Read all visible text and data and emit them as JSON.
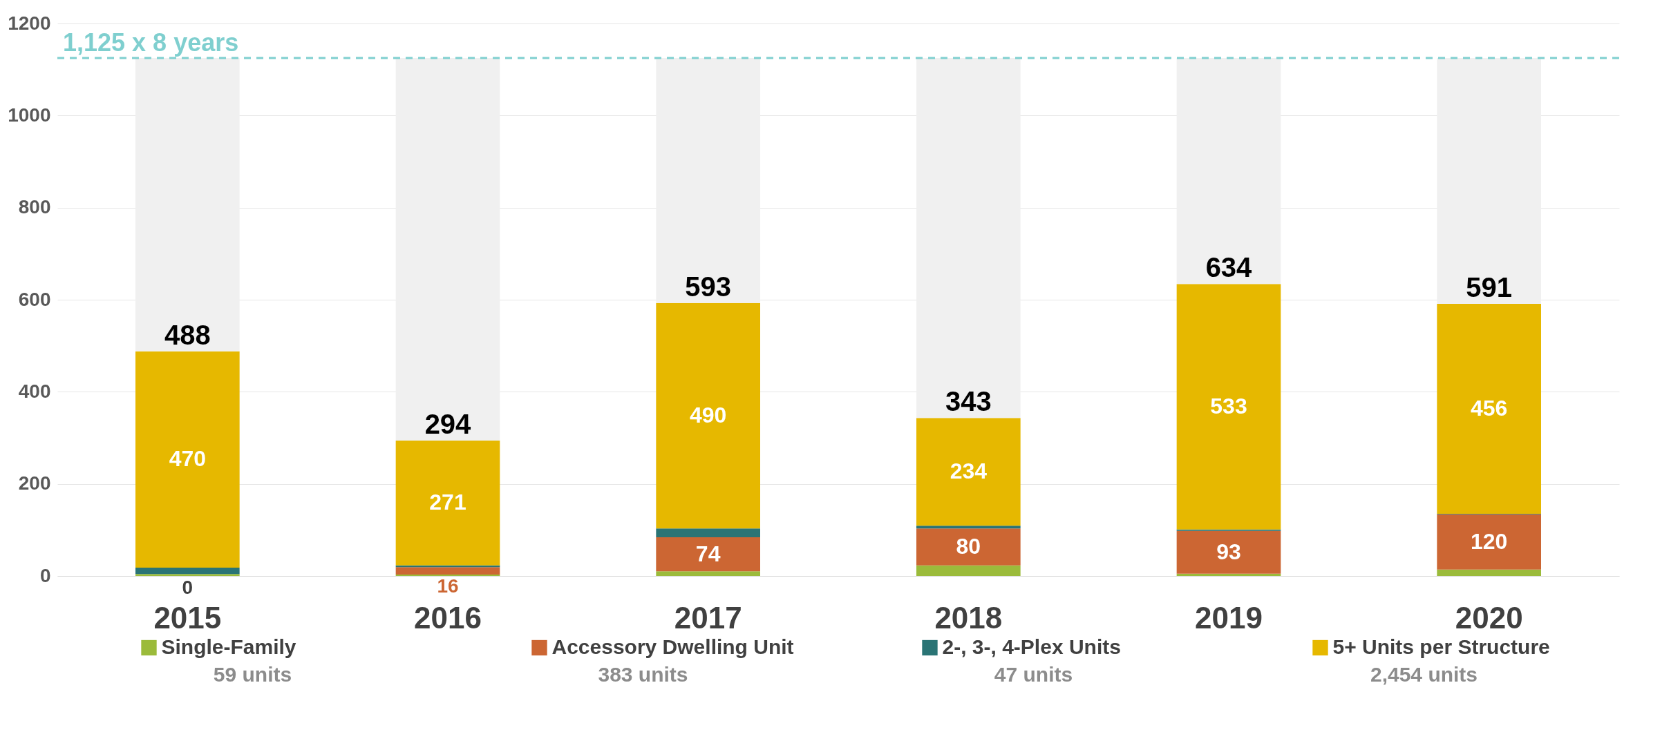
{
  "chart_data": {
    "type": "bar",
    "stacked": true,
    "categories": [
      "2015",
      "2016",
      "2017",
      "2018",
      "2019",
      "2020"
    ],
    "series": [
      {
        "name": "Single-Family",
        "color": "#9bbb3b",
        "values": [
          4,
          3,
          10,
          23,
          5,
          14
        ]
      },
      {
        "name": "Accessory Dwelling Unit",
        "color": "#cc6633",
        "values": [
          0,
          16,
          74,
          80,
          93,
          120
        ],
        "value_labels": [
          null,
          "16",
          "74",
          "80",
          "93",
          "120"
        ]
      },
      {
        "name": "2-, 3-, 4-Plex Units",
        "color": "#2a7475",
        "values": [
          14,
          4,
          19,
          6,
          3,
          1
        ]
      },
      {
        "name": "5+ Units per Structure",
        "color": "#e6b800",
        "values": [
          470,
          271,
          490,
          234,
          533,
          456
        ],
        "value_labels": [
          "470",
          "271",
          "490",
          "234",
          "533",
          "456"
        ]
      },
      {
        "color": "#f0f0f0",
        "values": [
          637,
          831,
          532,
          782,
          491,
          534
        ]
      }
    ],
    "ylim": [
      0,
      1200
    ],
    "yticks": [
      0,
      200,
      400,
      600,
      800,
      {
        "value": 1000,
        "label": "1000"
      },
      {
        "value": 1200,
        "label": "1200"
      }
    ],
    "grid": "y",
    "legend": "bottom",
    "ref_lines": [
      {
        "axis": "y",
        "value": 1125,
        "label": "1,125 x 8 years",
        "color": "#7fcfcf",
        "line_style": "dashed"
      }
    ],
    "annotations": [
      "59 units",
      "383 units",
      "47 units",
      "2,454 units",
      {
        "text": "0",
        "x": "2015",
        "y": 0
      },
      {
        "text": "488",
        "x": "2015",
        "y": 488
      },
      {
        "text": "294",
        "x": "2016",
        "y": 294
      },
      {
        "text": "593",
        "x": "2017",
        "y": 593
      },
      {
        "text": "343",
        "x": "2018",
        "y": 343
      },
      {
        "text": "634",
        "x": "2019",
        "y": 634
      },
      {
        "text": "591",
        "x": "2020",
        "y": 591
      }
    ]
  }
}
